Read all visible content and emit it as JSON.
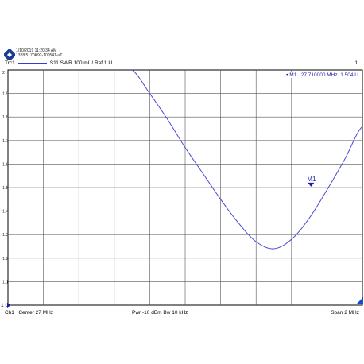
{
  "header": {
    "datetime": "1/10/2019 11:20:34 AM",
    "instrument_id": "1328.5170K92-100541-uT"
  },
  "trace": {
    "id": "Trc1",
    "measurement": "S11  SWR  100 mU/  Ref 1 U",
    "channel_number": "1",
    "color": "#3a3acc"
  },
  "marker": {
    "label": "M1",
    "readout_prefix": "• M1",
    "frequency": "27.710000  MHz",
    "value": "1.504  U",
    "x_mhz": 27.71,
    "y": 1.504
  },
  "footer": {
    "channel": "Ch1",
    "center": "Center  27 MHz",
    "power": "Pwr  -10 dBm  Bw  10 kHz",
    "span": "Span  2 MHz"
  },
  "chart_data": {
    "type": "line",
    "title": "",
    "xlabel": "",
    "ylabel": "",
    "x_range_mhz": [
      26,
      28
    ],
    "ylim": [
      1,
      2
    ],
    "y_ticks": [
      1.1,
      1.2,
      1.3,
      1.4,
      1.5,
      1.6,
      1.7,
      1.8,
      1.9
    ],
    "y_tick_labels": [
      "1.1",
      "1.2",
      "1.3",
      "1.4",
      "1.5",
      "1.6",
      "1.7",
      "1.8",
      "1.9"
    ],
    "y_top_label": "2",
    "y_ref_label": "1",
    "ref_marker_label": "U",
    "grid": true,
    "x_divisions": 10,
    "series": [
      {
        "color": "#4a4ad0",
        "x": [
          26.7,
          26.8,
          26.9,
          27.0,
          27.1,
          27.2,
          27.3,
          27.4,
          27.5,
          27.6,
          27.7,
          27.8,
          27.9,
          28.0
        ],
        "y": [
          2.0,
          1.9,
          1.79,
          1.67,
          1.56,
          1.45,
          1.35,
          1.27,
          1.24,
          1.28,
          1.37,
          1.49,
          1.62,
          1.76
        ]
      }
    ]
  }
}
